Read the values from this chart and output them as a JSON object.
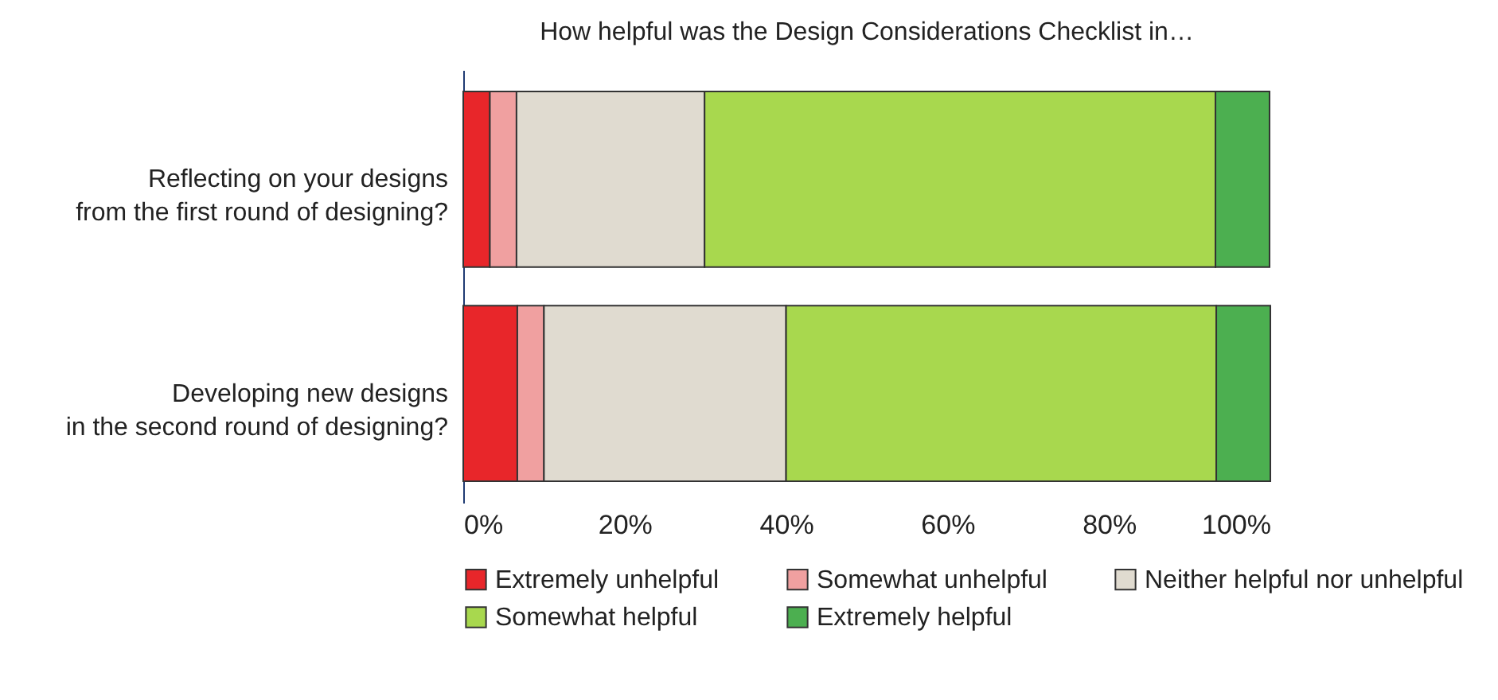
{
  "chart_data": {
    "type": "bar",
    "orientation": "horizontal",
    "stacked": true,
    "title": "How helpful was the Design Considerations Checklist in…",
    "categories": [
      "Reflecting on your designs\nfrom the first round of designing?",
      "Developing new designs\nin the second round of designing?"
    ],
    "series": [
      {
        "name": "Extremely unhelpful",
        "color": "#e8262a",
        "values": [
          3.3,
          6.7
        ]
      },
      {
        "name": "Somewhat unhelpful",
        "color": "#f0a0a0",
        "values": [
          3.3,
          3.3
        ]
      },
      {
        "name": "Neither helpful nor unhelpful",
        "color": "#e0dbd0",
        "values": [
          23.3,
          30
        ]
      },
      {
        "name": "Somewhat helpful",
        "color": "#a8d84e",
        "values": [
          63.3,
          53.3
        ]
      },
      {
        "name": "Extremely helpful",
        "color": "#4caf50",
        "values": [
          6.7,
          6.7
        ]
      }
    ],
    "xlim": [
      0,
      100
    ],
    "xticks": [
      {
        "value": 0,
        "label": "0%"
      },
      {
        "value": 20,
        "label": "20%"
      },
      {
        "value": 40,
        "label": "40%"
      },
      {
        "value": 60,
        "label": "60%"
      },
      {
        "value": 80,
        "label": "80%"
      },
      {
        "value": 100,
        "label": "100%"
      }
    ],
    "grid": false,
    "legend": "bottom"
  }
}
